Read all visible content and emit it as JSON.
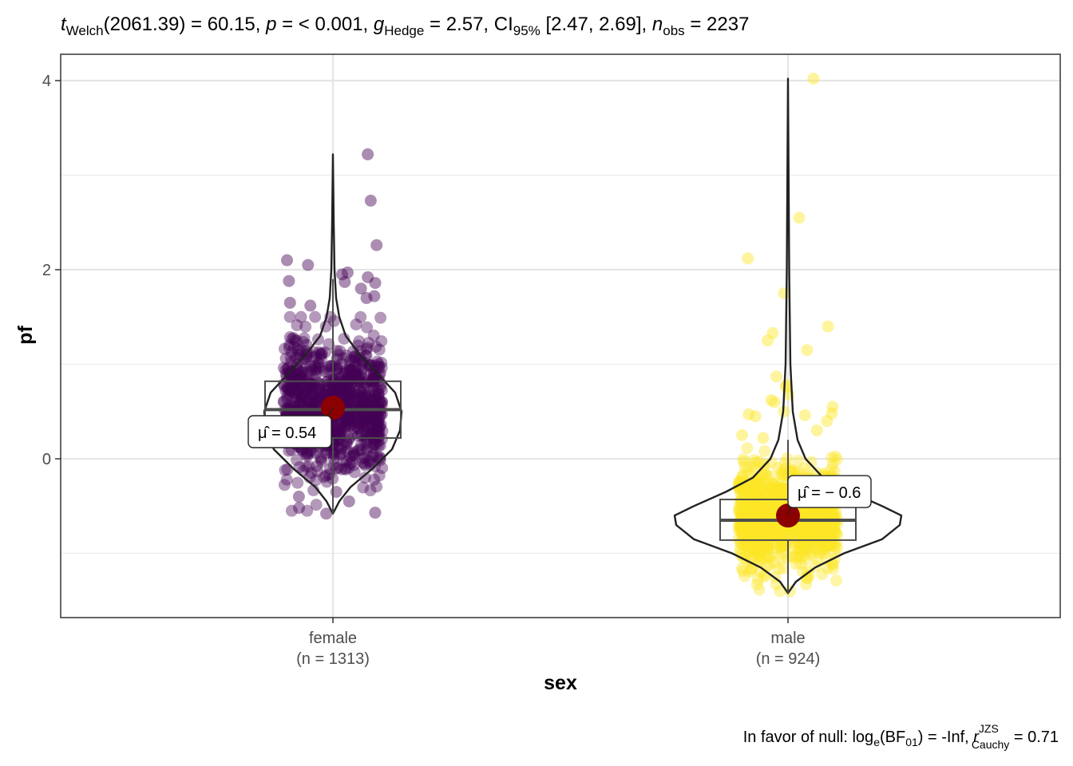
{
  "subtitle": {
    "t_symbol": "t",
    "t_sub": "Welch",
    "df_stat": "(2061.39) = 60.15, ",
    "p_symbol": "p",
    "p_value": " = < 0.001, ",
    "g_symbol": "g",
    "g_sub": "Hedge",
    "g_value": " = 2.57, CI",
    "ci_sub": "95%",
    "ci_value": " [2.47, 2.69], ",
    "n_symbol": "n",
    "n_sub": "obs",
    "n_value": " = 2237"
  },
  "caption": {
    "prefix": "In favor of null: log",
    "log_sub": "e",
    "bf_open": "(BF",
    "bf_sub": "01",
    "bf_value": ") = -Inf, ",
    "r_symbol": "r",
    "r_sup": "JZS",
    "r_sub": "Cauchy",
    "r_value": " = 0.71"
  },
  "chart_data": {
    "type": "violin-box-scatter",
    "xlabel": "sex",
    "ylabel": "pf",
    "ylim": [
      -1.68,
      4.2
    ],
    "yticks": [
      0,
      2,
      4
    ],
    "grid": true,
    "categories": [
      {
        "name": "female",
        "n_label": "(n = 1313)",
        "n": 1313,
        "mean": 0.54,
        "mean_label": "= 0.54",
        "color": "#440154",
        "min": -0.58,
        "max": 3.22,
        "box": {
          "q1": 0.22,
          "median": 0.52,
          "q3": 0.82,
          "whisker_low": -0.58,
          "whisker_high": 1.9
        },
        "outliers": [
          3.22,
          2.73,
          2.26,
          2.1,
          2.05,
          1.97,
          1.95,
          1.92,
          1.88,
          1.87,
          1.86,
          1.8,
          1.72,
          1.7,
          1.65,
          1.62,
          -0.35,
          -0.4,
          -0.45,
          -0.52,
          -0.58,
          -0.57
        ]
      },
      {
        "name": "male",
        "n_label": "(n = 924)",
        "n": 924,
        "mean": -0.6,
        "mean_label": "= − 0.6",
        "color": "#fde725",
        "min": -1.42,
        "max": 4.02,
        "box": {
          "q1": -0.86,
          "median": -0.65,
          "q3": -0.43,
          "whisker_low": -1.42,
          "whisker_high": 0.2
        },
        "outliers": [
          4.02,
          2.55,
          2.12,
          1.75,
          1.4,
          1.33,
          1.25,
          1.15,
          0.87,
          0.78,
          0.76,
          0.68,
          0.62,
          0.6,
          0.55,
          0.5,
          0.48,
          0.47,
          0.46,
          0.45,
          0.4,
          0.3,
          0.25,
          0.22
        ]
      }
    ]
  }
}
